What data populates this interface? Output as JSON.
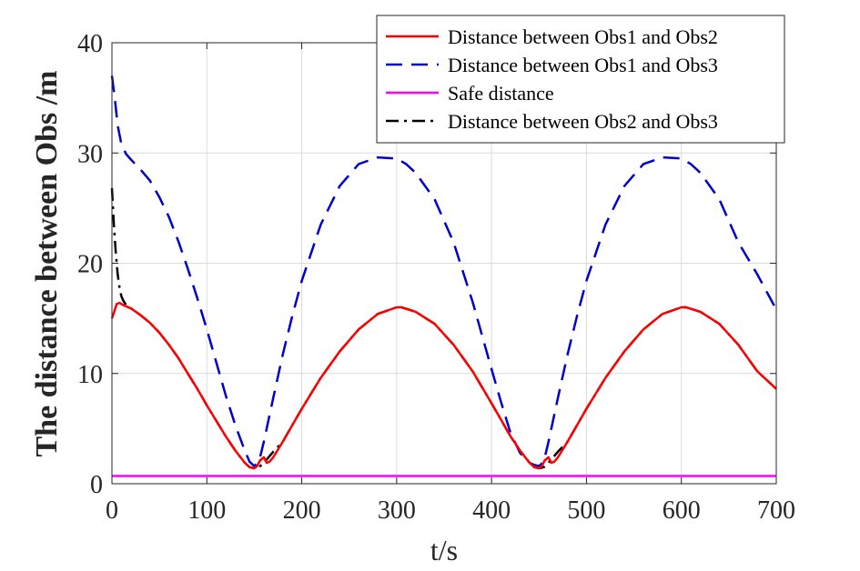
{
  "chart_data": {
    "type": "line",
    "xlabel": "t/s",
    "ylabel": "The distance between Obs /m",
    "xlim": [
      0,
      700
    ],
    "ylim": [
      0,
      40
    ],
    "xticks": [
      0,
      100,
      200,
      300,
      400,
      500,
      600,
      700
    ],
    "yticks": [
      0,
      10,
      20,
      30,
      40
    ],
    "xtick_labels": [
      "0",
      "100",
      "200",
      "300",
      "400",
      "500",
      "600",
      "700"
    ],
    "ytick_labels": [
      "0",
      "10",
      "20",
      "30",
      "40"
    ],
    "grid": true,
    "legend_position": "top-right",
    "series": [
      {
        "name": "Distance between Obs1 and Obs2",
        "color": "#ff0000",
        "style": "solid",
        "x": [
          0,
          2,
          5,
          8,
          12,
          20,
          30,
          40,
          50,
          60,
          70,
          80,
          90,
          100,
          110,
          120,
          130,
          140,
          145,
          150,
          153,
          156,
          160,
          163,
          166,
          170,
          180,
          190,
          200,
          220,
          240,
          260,
          280,
          300,
          305,
          320,
          340,
          360,
          380,
          400,
          410,
          420,
          430,
          440,
          445,
          450,
          453,
          456,
          460,
          463,
          466,
          470,
          480,
          490,
          500,
          520,
          540,
          560,
          580,
          600,
          605,
          620,
          640,
          660,
          680,
          700
        ],
        "y": [
          15.0,
          15.5,
          16.3,
          16.4,
          16.2,
          15.9,
          15.3,
          14.6,
          13.7,
          12.6,
          11.4,
          10.0,
          8.6,
          7.1,
          5.7,
          4.3,
          3.0,
          1.9,
          1.5,
          1.4,
          1.6,
          2.1,
          2.4,
          1.9,
          2.0,
          2.4,
          3.8,
          5.3,
          6.8,
          9.6,
          12.0,
          14.0,
          15.4,
          16.0,
          16.0,
          15.6,
          14.5,
          12.6,
          10.2,
          7.3,
          5.8,
          4.3,
          3.0,
          1.9,
          1.5,
          1.4,
          1.6,
          2.1,
          2.4,
          1.9,
          2.0,
          2.4,
          3.8,
          5.3,
          6.8,
          9.6,
          12.0,
          14.0,
          15.4,
          16.0,
          16.0,
          15.6,
          14.5,
          12.6,
          10.2,
          8.6
        ]
      },
      {
        "name": "Distance between Obs1 and Obs3",
        "color": "#0000cc",
        "style": "dashed",
        "x": [
          0,
          3,
          6,
          10,
          15,
          20,
          30,
          40,
          50,
          60,
          70,
          80,
          90,
          100,
          110,
          120,
          130,
          140,
          145,
          150,
          155,
          160,
          170,
          180,
          190,
          200,
          220,
          240,
          260,
          280,
          300,
          310,
          320,
          340,
          360,
          380,
          400,
          410,
          420,
          430,
          440,
          445,
          450,
          455,
          460,
          470,
          480,
          490,
          500,
          520,
          540,
          560,
          580,
          600,
          610,
          620,
          640,
          660,
          680,
          700
        ],
        "y": [
          37.0,
          35.0,
          32.5,
          30.8,
          29.9,
          29.4,
          28.5,
          27.5,
          26.0,
          24.2,
          22.0,
          19.5,
          16.8,
          14.0,
          11.0,
          8.0,
          5.3,
          3.0,
          2.0,
          1.6,
          2.0,
          3.8,
          7.8,
          11.7,
          15.2,
          18.4,
          23.5,
          27.0,
          29.0,
          29.6,
          29.5,
          29.0,
          28.2,
          25.8,
          21.9,
          16.5,
          10.4,
          7.4,
          4.6,
          2.8,
          1.9,
          1.7,
          1.6,
          2.0,
          3.8,
          7.8,
          11.7,
          15.2,
          18.4,
          23.5,
          27.0,
          29.0,
          29.6,
          29.5,
          29.0,
          28.2,
          25.8,
          21.9,
          19.0,
          15.8
        ]
      },
      {
        "name": "Safe distance",
        "color": "#ff00ff",
        "style": "solid",
        "x": [
          0,
          700
        ],
        "y": [
          0.7,
          0.7
        ]
      },
      {
        "name": "Distance between Obs2 and Obs3",
        "color": "#000000",
        "style": "dashdot",
        "x": [
          0,
          2,
          4,
          6,
          8,
          10,
          12,
          15,
          20,
          30,
          40,
          50,
          60,
          70,
          80,
          90,
          100,
          110,
          120,
          130,
          140,
          145,
          150,
          155,
          160,
          165,
          170,
          180,
          190,
          200,
          220,
          240,
          260,
          280,
          300,
          305,
          320,
          340,
          360,
          380,
          400,
          410,
          420,
          430,
          440,
          445,
          450,
          455,
          460,
          465,
          470,
          480,
          490,
          500,
          520,
          540,
          560,
          580,
          600,
          605,
          620,
          640,
          660,
          680,
          700
        ],
        "y": [
          26.8,
          23.5,
          21.0,
          19.0,
          17.8,
          17.0,
          16.6,
          16.2,
          15.9,
          15.3,
          14.6,
          13.7,
          12.6,
          11.4,
          10.0,
          8.6,
          7.1,
          5.7,
          4.3,
          3.0,
          1.9,
          1.5,
          1.4,
          1.5,
          1.9,
          2.4,
          2.9,
          3.8,
          5.3,
          6.8,
          9.6,
          12.0,
          14.0,
          15.4,
          16.0,
          16.0,
          15.6,
          14.5,
          12.6,
          10.2,
          7.3,
          5.8,
          4.3,
          3.0,
          1.9,
          1.5,
          1.4,
          1.5,
          1.9,
          2.4,
          2.9,
          3.8,
          5.3,
          6.8,
          9.6,
          12.0,
          14.0,
          15.4,
          16.0,
          16.0,
          15.6,
          14.5,
          12.6,
          10.2,
          8.6
        ]
      }
    ]
  }
}
